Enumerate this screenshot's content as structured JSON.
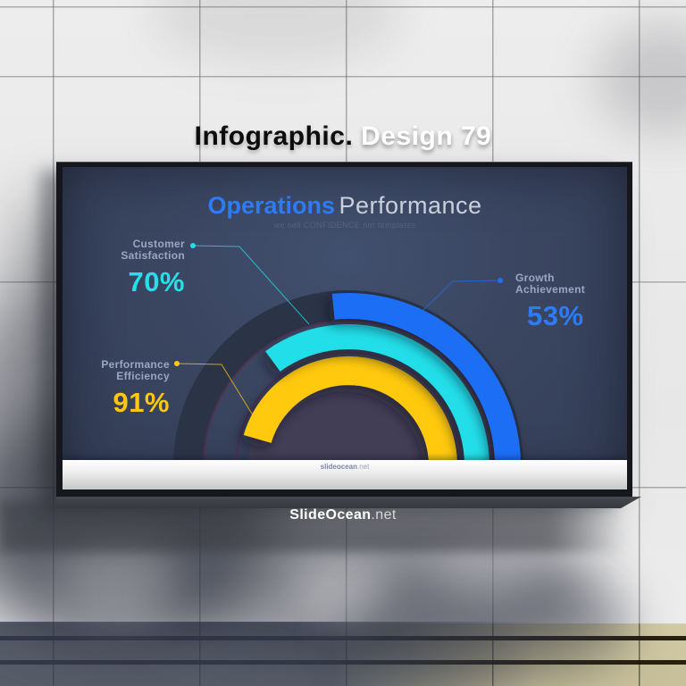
{
  "headline": {
    "word_dark": "Infographic.",
    "word_light": "Design 79"
  },
  "watermark": {
    "bold": "SlideOcean",
    "light": ".net"
  },
  "slide": {
    "title_accent": "Operations",
    "title_rest": "Performance",
    "subtitle": "we sell CONFIDENCE not templates",
    "footer_bold": "slideocean",
    "footer_light": ".net"
  },
  "metrics": {
    "customer": {
      "line1": "Customer",
      "line2": "Satisfaction",
      "value": "70%"
    },
    "growth": {
      "line1": "Growth",
      "line2": "Achievement",
      "value": "53%"
    },
    "performance": {
      "line1": "Performance",
      "line2": "Efficiency",
      "value": "91%"
    }
  },
  "chart_data": {
    "type": "half-donut-gauge",
    "title": "Operations Performance",
    "unit": "%",
    "angle_span_deg": 180,
    "value_range": [
      0,
      100
    ],
    "series": [
      {
        "name": "Growth Achievement",
        "value": 53,
        "color": "#1f6ef5",
        "ring": "outer"
      },
      {
        "name": "Customer Satisfaction",
        "value": 70,
        "color": "#22dee9",
        "ring": "middle"
      },
      {
        "name": "Performance Efficiency",
        "value": 91,
        "color": "#ffc90f",
        "ring": "inner"
      }
    ],
    "track_color": "#2b3347",
    "legend_position": "callout-labels"
  },
  "colors": {
    "accent_blue": "#2e7bf6",
    "cyan": "#25e0ea",
    "yellow": "#ffc712",
    "label_gray": "#9aa7c4",
    "screen_bg": "#3a4560",
    "maroon_ring": "#5e2546",
    "center_disc": "#423e55"
  }
}
